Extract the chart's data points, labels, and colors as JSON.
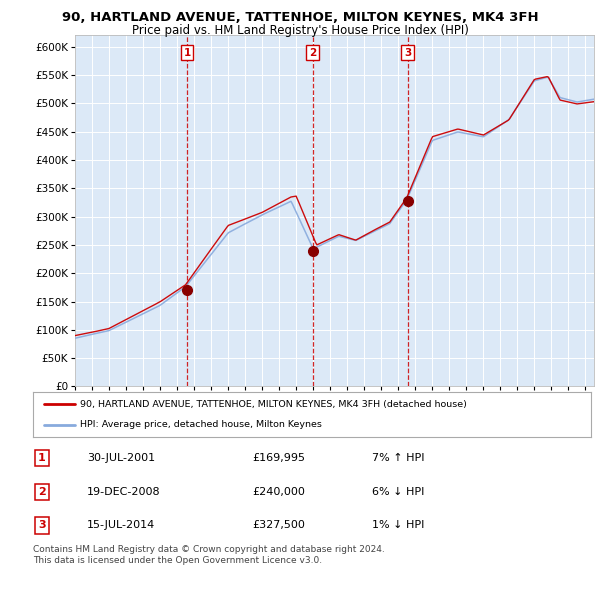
{
  "title": "90, HARTLAND AVENUE, TATTENHOE, MILTON KEYNES, MK4 3FH",
  "subtitle": "Price paid vs. HM Land Registry's House Price Index (HPI)",
  "background_color": "#ffffff",
  "plot_bg_color": "#dce9f7",
  "ylim": [
    0,
    620000
  ],
  "yticks": [
    0,
    50000,
    100000,
    150000,
    200000,
    250000,
    300000,
    350000,
    400000,
    450000,
    500000,
    550000,
    600000
  ],
  "ytick_labels": [
    "£0",
    "£50K",
    "£100K",
    "£150K",
    "£200K",
    "£250K",
    "£300K",
    "£350K",
    "£400K",
    "£450K",
    "£500K",
    "£550K",
    "£600K"
  ],
  "sale_dates": [
    2001.58,
    2008.97,
    2014.54
  ],
  "sale_prices": [
    169995,
    240000,
    327500
  ],
  "sale_labels": [
    "1",
    "2",
    "3"
  ],
  "red_line_color": "#cc0000",
  "blue_line_color": "#88aadd",
  "marker_color": "#880000",
  "vline_color": "#cc0000",
  "legend_red_label": "90, HARTLAND AVENUE, TATTENHOE, MILTON KEYNES, MK4 3FH (detached house)",
  "legend_blue_label": "HPI: Average price, detached house, Milton Keynes",
  "table_rows": [
    [
      "1",
      "30-JUL-2001",
      "£169,995",
      "7% ↑ HPI"
    ],
    [
      "2",
      "19-DEC-2008",
      "£240,000",
      "6% ↓ HPI"
    ],
    [
      "3",
      "15-JUL-2014",
      "£327,500",
      "1% ↓ HPI"
    ]
  ],
  "footer": "Contains HM Land Registry data © Crown copyright and database right 2024.\nThis data is licensed under the Open Government Licence v3.0.",
  "xstart": 1995.0,
  "xend": 2025.5
}
